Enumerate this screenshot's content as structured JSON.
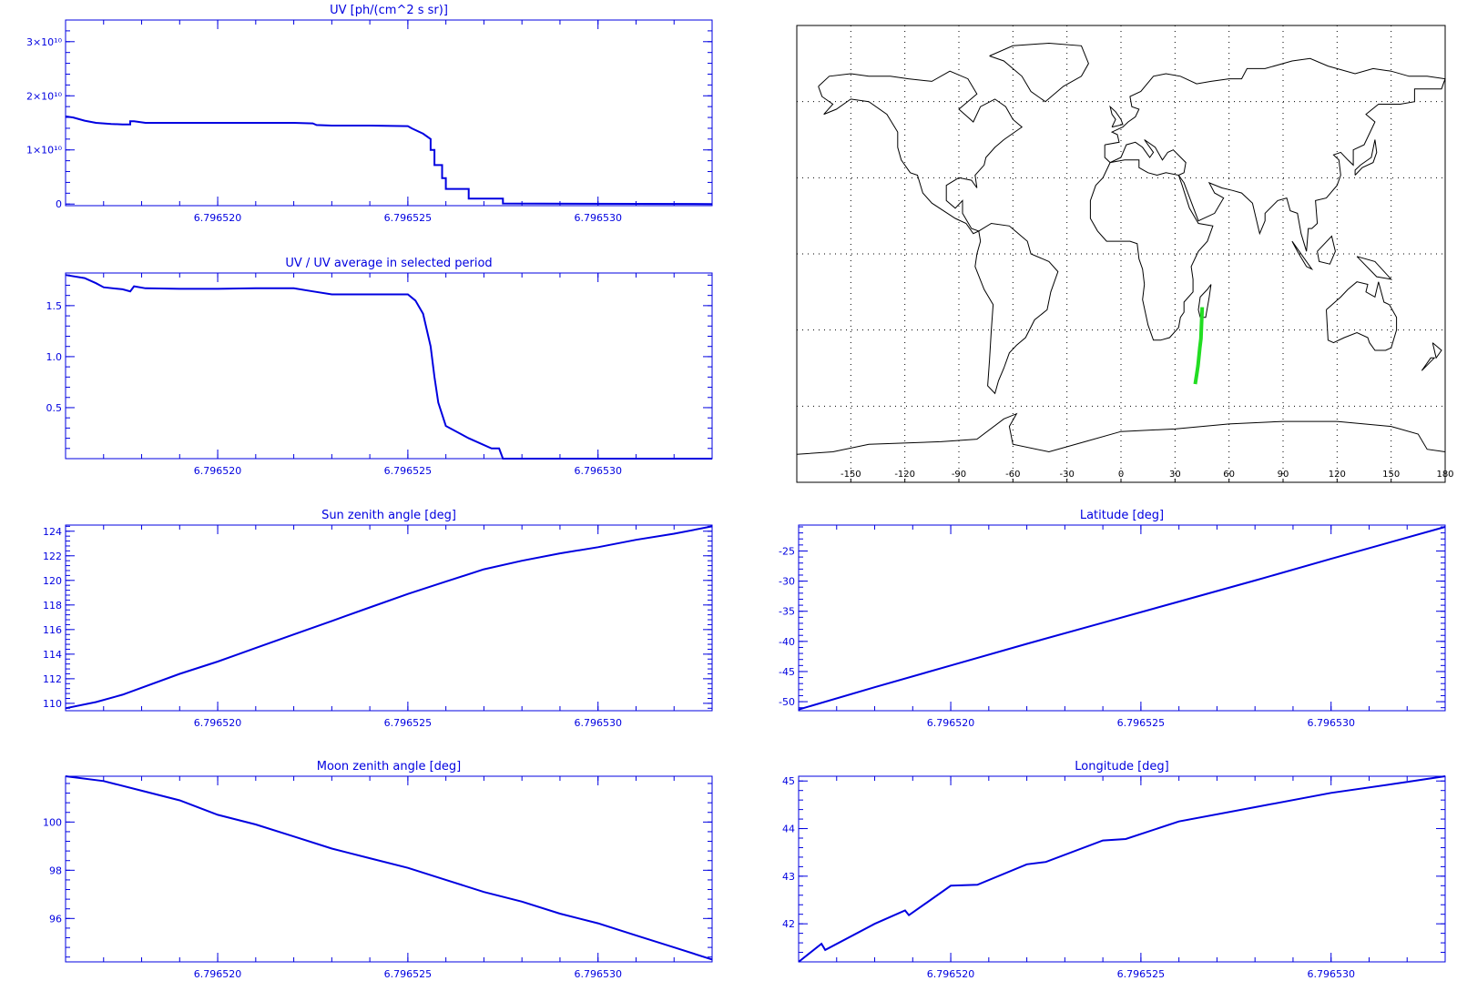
{
  "colors": {
    "plot": "#0000e0",
    "track": "#22dd22",
    "map": "#000000"
  },
  "chart_data": [
    {
      "id": "uv",
      "type": "line",
      "title": "UV [ph/(cm^2 s sr)]",
      "xlim": [
        6.796516,
        6.796533
      ],
      "ylim": [
        -0.03,
        3.4
      ],
      "y_scale_note": "values in units of 10^10",
      "xticks": [
        6.79652,
        6.796525,
        6.79653
      ],
      "xtick_labels": [
        "6.796520",
        "6.796525",
        "6.796530"
      ],
      "yticks": [
        0,
        1,
        2,
        3
      ],
      "ytick_labels": [
        "0",
        "1×10¹⁰",
        "2×10¹⁰",
        "3×10¹⁰"
      ],
      "series": [
        {
          "x": [
            6.796516,
            6.7965162,
            6.7965165,
            6.7965168,
            6.7965172,
            6.7965175,
            6.7965177,
            6.7965177,
            6.7965178,
            6.7965181,
            6.7965182,
            6.796519,
            6.79652,
            6.796521,
            6.796522,
            6.7965225,
            6.7965226,
            6.796523,
            6.796524,
            6.796525,
            6.7965251,
            6.7965254,
            6.7965254,
            6.7965256,
            6.7965256,
            6.7965257,
            6.7965257,
            6.7965259,
            6.7965259,
            6.796526,
            6.796526,
            6.7965266,
            6.7965266,
            6.7965275,
            6.7965275,
            6.796533
          ],
          "y": [
            1.62,
            1.6,
            1.54,
            1.5,
            1.48,
            1.47,
            1.47,
            1.53,
            1.53,
            1.5,
            1.5,
            1.5,
            1.5,
            1.5,
            1.5,
            1.49,
            1.46,
            1.45,
            1.45,
            1.44,
            1.4,
            1.3,
            1.3,
            1.2,
            1.0,
            1.0,
            0.72,
            0.72,
            0.48,
            0.48,
            0.28,
            0.28,
            0.1,
            0.1,
            0.01,
            0.0
          ]
        }
      ]
    },
    {
      "id": "uv_ratio",
      "type": "line",
      "title": "UV / UV average in selected period",
      "xlim": [
        6.796516,
        6.796533
      ],
      "ylim": [
        0,
        1.82
      ],
      "xticks": [
        6.79652,
        6.796525,
        6.79653
      ],
      "xtick_labels": [
        "6.796520",
        "6.796525",
        "6.796530"
      ],
      "yticks": [
        0.5,
        1.0,
        1.5
      ],
      "ytick_labels": [
        "0.5",
        "1.0",
        "1.5"
      ],
      "series": [
        {
          "x": [
            6.796516,
            6.7965165,
            6.7965168,
            6.796517,
            6.7965175,
            6.7965177,
            6.7965178,
            6.7965181,
            6.796519,
            6.79652,
            6.796521,
            6.796522,
            6.7965225,
            6.796523,
            6.796524,
            6.796525,
            6.7965252,
            6.7965254,
            6.7965256,
            6.7965257,
            6.7965258,
            6.796526,
            6.7965266,
            6.7965272,
            6.7965274,
            6.7965275,
            6.796533
          ],
          "y": [
            1.8,
            1.77,
            1.72,
            1.68,
            1.66,
            1.64,
            1.69,
            1.67,
            1.665,
            1.665,
            1.67,
            1.67,
            1.64,
            1.61,
            1.61,
            1.61,
            1.55,
            1.42,
            1.1,
            0.8,
            0.55,
            0.32,
            0.2,
            0.1,
            0.1,
            0.0,
            0.0
          ]
        }
      ]
    },
    {
      "id": "sun_zenith",
      "type": "line",
      "title": "Sun zenith angle [deg]",
      "xlim": [
        6.796516,
        6.796533
      ],
      "ylim": [
        109.4,
        124.5
      ],
      "xticks": [
        6.79652,
        6.796525,
        6.79653
      ],
      "xtick_labels": [
        "6.796520",
        "6.796525",
        "6.796530"
      ],
      "yticks": [
        110,
        112,
        114,
        116,
        118,
        120,
        122,
        124
      ],
      "ytick_labels": [
        "110",
        "112",
        "114",
        "116",
        "118",
        "120",
        "122",
        "124"
      ],
      "series": [
        {
          "x": [
            6.796516,
            6.7965168,
            6.7965175,
            6.796519,
            6.79652,
            6.796521,
            6.796522,
            6.796523,
            6.796524,
            6.796525,
            6.796526,
            6.796527,
            6.796528,
            6.796529,
            6.79653,
            6.796531,
            6.796532,
            6.796533
          ],
          "y": [
            109.6,
            110.1,
            110.7,
            112.4,
            113.4,
            114.5,
            115.6,
            116.7,
            117.8,
            118.9,
            119.9,
            120.9,
            121.6,
            122.2,
            122.7,
            123.3,
            123.8,
            124.4
          ]
        }
      ]
    },
    {
      "id": "latitude",
      "type": "line",
      "title": "Latitude [deg]",
      "xlim": [
        6.796516,
        6.796533
      ],
      "ylim": [
        -51.5,
        -20.7
      ],
      "xticks": [
        6.79652,
        6.796525,
        6.79653
      ],
      "xtick_labels": [
        "6.796520",
        "6.796525",
        "6.796530"
      ],
      "yticks": [
        -50,
        -45,
        -40,
        -35,
        -30,
        -25
      ],
      "ytick_labels": [
        "-50",
        "-45",
        "-40",
        "-35",
        "-30",
        "-25"
      ],
      "series": [
        {
          "x": [
            6.796516,
            6.796518,
            6.79652,
            6.796522,
            6.796524,
            6.796526,
            6.796528,
            6.79653,
            6.796533
          ],
          "y": [
            -51.3,
            -47.6,
            -44.0,
            -40.4,
            -36.9,
            -33.4,
            -29.9,
            -26.3,
            -21.0
          ]
        }
      ]
    },
    {
      "id": "moon_zenith",
      "type": "line",
      "title": "Moon zenith angle [deg]",
      "xlim": [
        6.796516,
        6.796533
      ],
      "ylim": [
        94.2,
        101.9
      ],
      "xticks": [
        6.79652,
        6.796525,
        6.79653
      ],
      "xtick_labels": [
        "6.796520",
        "6.796525",
        "6.796530"
      ],
      "yticks": [
        96,
        98,
        100
      ],
      "ytick_labels": [
        "96",
        "98",
        "100"
      ],
      "series": [
        {
          "x": [
            6.796516,
            6.796517,
            6.796518,
            6.796519,
            6.79652,
            6.796521,
            6.796522,
            6.796523,
            6.796524,
            6.796525,
            6.796526,
            6.796527,
            6.796528,
            6.796529,
            6.79653,
            6.796531,
            6.796532,
            6.796533
          ],
          "y": [
            101.9,
            101.7,
            101.3,
            100.9,
            100.3,
            99.9,
            99.4,
            98.9,
            98.5,
            98.1,
            97.6,
            97.1,
            96.7,
            96.2,
            95.8,
            95.3,
            94.8,
            94.3
          ]
        }
      ]
    },
    {
      "id": "longitude",
      "type": "line",
      "title": "Longitude [deg]",
      "xlim": [
        6.796516,
        6.796533
      ],
      "ylim": [
        41.2,
        45.1
      ],
      "xticks": [
        6.79652,
        6.796525,
        6.79653
      ],
      "xtick_labels": [
        "6.796520",
        "6.796525",
        "6.796530"
      ],
      "yticks": [
        42,
        43,
        44,
        45
      ],
      "ytick_labels": [
        "42",
        "43",
        "44",
        "45"
      ],
      "series": [
        {
          "x": [
            6.796516,
            6.7965166,
            6.7965167,
            6.796518,
            6.7965188,
            6.7965189,
            6.79652,
            6.7965207,
            6.796522,
            6.7965225,
            6.796524,
            6.7965246,
            6.796526,
            6.796528,
            6.79653,
            6.796532,
            6.796533
          ],
          "y": [
            41.2,
            41.58,
            41.45,
            42.0,
            42.28,
            42.18,
            42.8,
            42.82,
            43.25,
            43.3,
            43.75,
            43.78,
            44.15,
            44.45,
            44.75,
            44.98,
            45.1
          ]
        }
      ]
    }
  ],
  "map": {
    "xtick_labels": [
      "-150",
      "-120",
      "-90",
      "-60",
      "-30",
      "0",
      "30",
      "60",
      "90",
      "120",
      "150",
      "180"
    ],
    "xticks": [
      -150,
      -120,
      -90,
      -60,
      -30,
      0,
      30,
      60,
      90,
      120,
      150,
      180
    ],
    "track": {
      "lon": [
        41.2,
        42.0,
        42.8,
        43.8,
        44.4,
        44.8,
        45.1
      ],
      "lat": [
        -51.3,
        -47.6,
        -44.0,
        -36.9,
        -33.4,
        -26.3,
        -21.0
      ]
    }
  }
}
